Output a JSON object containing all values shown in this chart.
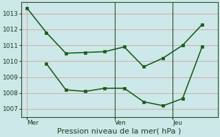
{
  "title": "Pression niveau de la mer( hPa )",
  "bg_color": "#cce8e8",
  "grid_color": "#d8a8a8",
  "line_color": "#1a5c1a",
  "line1_x": [
    0,
    1,
    2,
    3,
    4,
    5,
    6,
    7,
    8,
    9
  ],
  "line1_y": [
    1013.35,
    1011.8,
    1010.5,
    1010.55,
    1010.6,
    1010.9,
    1009.65,
    1010.2,
    1011.0,
    1012.3
  ],
  "line2_x": [
    1,
    2,
    3,
    4,
    5,
    6,
    7,
    8,
    9
  ],
  "line2_y": [
    1009.85,
    1008.2,
    1008.1,
    1008.3,
    1008.3,
    1007.45,
    1007.2,
    1007.65,
    1010.9
  ],
  "vline1_x": 4.5,
  "vline2_x": 7.5,
  "xtick_positions": [
    0,
    4.5,
    7.5
  ],
  "xtick_labels": [
    "Mer",
    "Ven",
    "Jeu"
  ],
  "ytick_positions": [
    1007,
    1008,
    1009,
    1010,
    1011,
    1012,
    1013
  ],
  "ylim": [
    1006.5,
    1013.7
  ],
  "xlim": [
    -0.3,
    9.8
  ],
  "marker_size": 3,
  "line_width": 1.2,
  "tick_fontsize": 6.5,
  "xlabel_fontsize": 8
}
